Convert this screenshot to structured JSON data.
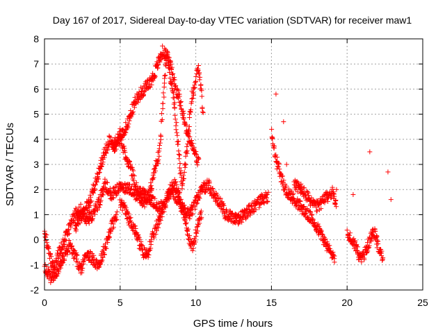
{
  "chart_data": {
    "type": "scatter",
    "title": "Day 167 of 2017, Sidereal Day-to-day VTEC variation (SDTVAR) for receiver maw1",
    "xlabel": "GPS time / hours",
    "ylabel": "SDTVAR / TECUs",
    "xlim": [
      0,
      25
    ],
    "ylim": [
      -2,
      8
    ],
    "xticks": [
      0,
      5,
      10,
      15,
      20,
      25
    ],
    "yticks": [
      -2,
      -1,
      0,
      1,
      2,
      3,
      4,
      5,
      6,
      7,
      8
    ],
    "xtick_labels": [
      "0",
      "5",
      "10",
      "15",
      "20",
      "25"
    ],
    "ytick_labels": [
      "-2",
      "-1",
      "0",
      "1",
      "2",
      "3",
      "4",
      "5",
      "6",
      "7",
      "8"
    ],
    "grid": true,
    "marker": "+",
    "marker_color": "#ff0000",
    "series": [
      {
        "name": "SDTVAR",
        "tracks": [
          {
            "x": [
              0.0,
              0.3,
              0.6,
              0.9,
              1.2,
              1.6,
              2.0,
              2.4,
              2.8,
              3.2,
              3.6,
              4.0,
              4.4,
              4.8,
              5.2,
              5.6,
              6.0,
              6.4,
              6.8,
              7.2,
              7.6,
              8.0,
              8.4,
              8.8,
              9.2,
              9.6,
              10.0,
              10.4,
              10.8,
              11.2,
              11.6,
              12.0,
              12.4,
              12.8,
              13.2,
              13.6,
              14.0,
              14.4,
              14.8
            ],
            "y": [
              0.3,
              -0.5,
              -1.2,
              -0.6,
              -0.2,
              0.4,
              1.0,
              1.2,
              0.8,
              1.0,
              1.5,
              2.2,
              1.8,
              2.0,
              2.1,
              2.0,
              1.8,
              1.9,
              1.7,
              1.5,
              1.3,
              1.5,
              2.0,
              1.6,
              1.2,
              1.0,
              1.5,
              2.0,
              2.2,
              1.8,
              1.5,
              1.0,
              0.9,
              0.8,
              1.0,
              1.2,
              1.4,
              1.6,
              1.7
            ]
          },
          {
            "x": [
              2.0,
              2.5,
              3.0,
              3.5,
              4.0,
              4.3,
              4.6,
              5.0,
              5.3,
              5.6,
              5.9,
              6.2,
              6.5,
              6.8,
              7.0,
              7.3,
              7.6,
              7.9,
              8.1,
              8.3,
              8.5,
              8.8,
              9.1,
              9.4,
              9.7,
              10.0,
              10.2,
              10.5
            ],
            "y": [
              0.5,
              1.0,
              1.5,
              2.5,
              3.5,
              4.0,
              3.8,
              4.2,
              3.5,
              3.0,
              2.5,
              1.8,
              1.5,
              1.6,
              2.0,
              2.8,
              3.5,
              6.0,
              7.5,
              6.5,
              5.8,
              4.0,
              2.0,
              3.5,
              5.5,
              6.5,
              6.8,
              5.0
            ]
          },
          {
            "x": [
              4.5,
              4.8,
              5.1,
              5.4,
              5.7,
              6.0,
              6.3,
              6.6,
              6.9,
              7.2,
              7.5,
              7.8,
              8.1,
              8.4,
              8.7,
              9.0,
              9.3,
              9.6,
              9.9,
              10.2
            ],
            "y": [
              3.5,
              3.8,
              4.2,
              4.5,
              5.0,
              5.5,
              5.8,
              6.0,
              6.2,
              6.5,
              7.0,
              7.5,
              7.3,
              6.8,
              6.0,
              5.5,
              4.5,
              4.0,
              3.5,
              3.0
            ]
          },
          {
            "x": [
              5.0,
              5.3,
              5.6,
              5.9,
              6.2,
              6.5,
              6.8,
              7.1,
              7.4,
              7.7,
              8.0,
              8.3,
              8.6,
              8.9,
              9.2,
              9.5,
              9.8,
              10.1,
              10.4
            ],
            "y": [
              1.5,
              1.2,
              0.8,
              0.5,
              0.0,
              -0.5,
              -0.6,
              0.0,
              0.5,
              1.0,
              1.5,
              2.0,
              2.2,
              1.8,
              1.0,
              0.2,
              -0.3,
              0.5,
              1.0
            ]
          },
          {
            "x": [
              0.0,
              0.4,
              0.8,
              1.2,
              1.6,
              2.0,
              2.4,
              2.8,
              3.2,
              3.6,
              4.0,
              4.4,
              4.8
            ],
            "y": [
              -1.0,
              -1.5,
              -1.3,
              -0.8,
              -0.2,
              -0.6,
              -1.2,
              -0.5,
              -0.8,
              -1.0,
              -0.3,
              0.5,
              1.0
            ]
          },
          {
            "x": [
              15.0,
              15.3,
              15.6,
              15.9,
              16.2,
              16.5,
              16.8,
              17.1,
              17.4,
              17.7,
              18.0,
              18.3,
              18.6,
              18.9,
              19.2
            ],
            "y": [
              4.2,
              3.2,
              2.6,
              2.0,
              1.8,
              1.6,
              1.4,
              1.2,
              1.0,
              0.8,
              0.5,
              0.2,
              -0.2,
              -0.5,
              -0.7
            ]
          },
          {
            "x": [
              16.5,
              17.0,
              17.5,
              18.0,
              18.5,
              19.0,
              19.3
            ],
            "y": [
              2.2,
              2.0,
              1.6,
              1.3,
              1.6,
              1.9,
              1.5
            ]
          },
          {
            "x": [
              20.0,
              20.3,
              20.6,
              20.9,
              21.2,
              21.5,
              21.8,
              22.1,
              22.4
            ],
            "y": [
              0.2,
              0.0,
              -0.3,
              -0.8,
              -0.5,
              0.0,
              0.3,
              -0.3,
              -0.8
            ]
          }
        ],
        "outliers": {
          "x": [
            15.3,
            15.8,
            21.5,
            22.7,
            22.9,
            16.0,
            19.3,
            20.4
          ],
          "y": [
            5.8,
            4.7,
            3.5,
            2.7,
            1.6,
            3.0,
            2.0,
            1.8
          ]
        }
      }
    ]
  }
}
